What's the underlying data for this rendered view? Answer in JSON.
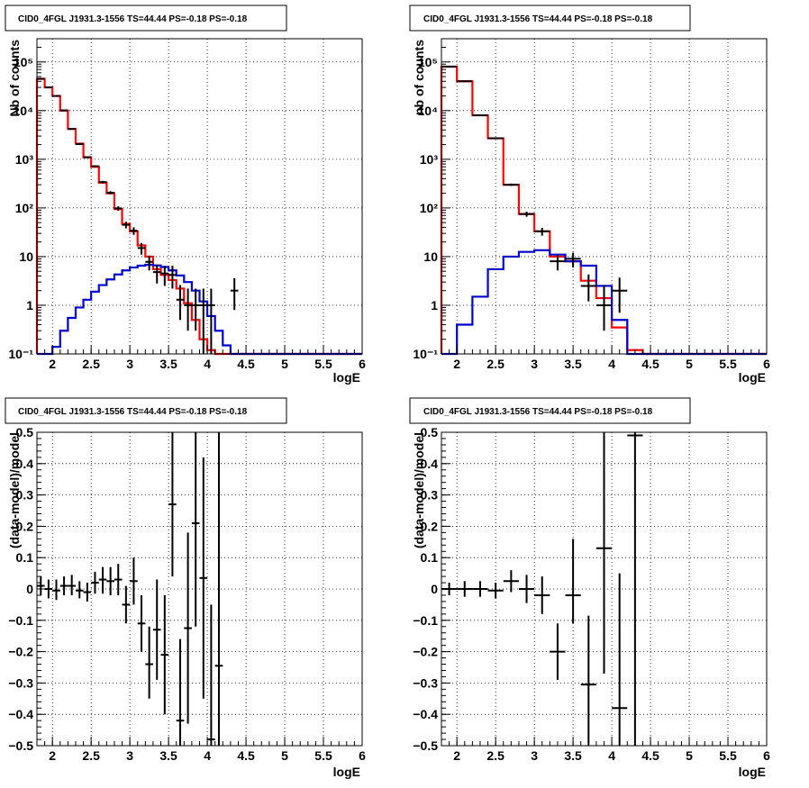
{
  "panels_title": "CID0_4FGL J1931.3-1556 TS=44.44 PS=-0.18 PS=-0.18",
  "colors": {
    "data": "#000000",
    "total_model": "#ff0000",
    "source_model": "#0000cc"
  },
  "chart_data": [
    {
      "id": "p1",
      "type": "line",
      "title": "CID0_4FGL J1931.3-1556 TS=44.44 PS=-0.18 PS=-0.18",
      "xlabel": "logE",
      "ylabel": "Nb of counts",
      "yscale": "log",
      "xlim": [
        1.8,
        6.0
      ],
      "ylim": [
        0.1,
        300000
      ],
      "xticks": [
        2,
        2.5,
        3,
        3.5,
        4,
        4.5,
        5,
        5.5,
        6
      ],
      "xtick_labels": [
        "2",
        "2.5",
        "3",
        "3.5",
        "4",
        "4.5",
        "5",
        "5.5",
        "6"
      ],
      "yticks": [
        0.1,
        1,
        10,
        100,
        1000,
        10000,
        100000
      ],
      "ytick_labels": [
        "10⁻¹",
        "1",
        "10",
        "10²",
        "10³",
        "10⁴",
        "10⁵"
      ],
      "grid": true,
      "bin_edges": [
        1.8,
        1.9,
        2.0,
        2.1,
        2.2,
        2.3,
        2.4,
        2.5,
        2.6,
        2.7,
        2.8,
        2.9,
        3.0,
        3.1,
        3.2,
        3.3,
        3.4,
        3.5,
        3.6,
        3.7,
        3.8,
        3.9,
        4.0,
        4.1,
        4.2,
        4.3,
        4.4,
        4.5,
        4.6,
        4.7,
        4.8,
        4.9,
        5.0,
        5.1,
        5.2,
        5.3,
        5.4,
        5.5,
        5.6,
        5.7,
        5.8,
        5.9,
        6.0
      ],
      "total_model": [
        45000,
        30000,
        20000,
        10000,
        4200,
        2100,
        1100,
        700,
        330,
        200,
        95,
        47,
        33,
        17,
        10,
        5.5,
        4.2,
        3.3,
        2.2,
        1.1,
        0.5,
        0.2,
        0.12,
        0.1,
        0.1,
        0.1,
        0.1,
        0.1,
        0.1,
        0.1,
        0.1,
        0.1,
        0.1,
        0.1,
        0.1,
        0.1,
        0.1,
        0.1,
        0.1,
        0.1,
        0.1,
        0.1
      ],
      "source_model": [
        0.1,
        0.1,
        0.14,
        0.3,
        0.55,
        0.9,
        1.3,
        1.9,
        2.6,
        3.4,
        4.3,
        5.2,
        6.0,
        6.5,
        6.8,
        6.6,
        6.1,
        5.2,
        4.1,
        3.0,
        2.0,
        1.2,
        0.6,
        0.3,
        0.15,
        0.1,
        0.1,
        0.1,
        0.1,
        0.1,
        0.1,
        0.1,
        0.1,
        0.1,
        0.1,
        0.1,
        0.1,
        0.1,
        0.1,
        0.1,
        0.1,
        0.1
      ],
      "data_points": [
        {
          "x": 1.85,
          "y": 45000,
          "lo": 44600,
          "hi": 45400
        },
        {
          "x": 1.95,
          "y": 30000,
          "lo": 29700,
          "hi": 30300
        },
        {
          "x": 2.05,
          "y": 20000,
          "lo": 19800,
          "hi": 20200
        },
        {
          "x": 2.15,
          "y": 10100,
          "lo": 9950,
          "hi": 10250
        },
        {
          "x": 2.25,
          "y": 4200,
          "lo": 4130,
          "hi": 4270
        },
        {
          "x": 2.35,
          "y": 2050,
          "lo": 2000,
          "hi": 2100
        },
        {
          "x": 2.45,
          "y": 1100,
          "lo": 1070,
          "hi": 1130
        },
        {
          "x": 2.55,
          "y": 720,
          "lo": 690,
          "hi": 750
        },
        {
          "x": 2.65,
          "y": 340,
          "lo": 320,
          "hi": 360
        },
        {
          "x": 2.75,
          "y": 205,
          "lo": 190,
          "hi": 220
        },
        {
          "x": 2.85,
          "y": 98,
          "lo": 88,
          "hi": 108
        },
        {
          "x": 2.95,
          "y": 45,
          "lo": 38,
          "hi": 52
        },
        {
          "x": 3.05,
          "y": 34,
          "lo": 28,
          "hi": 40
        },
        {
          "x": 3.15,
          "y": 15,
          "lo": 11,
          "hi": 19
        },
        {
          "x": 3.25,
          "y": 7.8,
          "lo": 5.2,
          "hi": 10.5
        },
        {
          "x": 3.35,
          "y": 4.8,
          "lo": 2.8,
          "hi": 6.9
        },
        {
          "x": 3.45,
          "y": 4.5,
          "lo": 2.5,
          "hi": 6.5
        },
        {
          "x": 3.55,
          "y": 4.2,
          "lo": 2.2,
          "hi": 6.5
        },
        {
          "x": 3.65,
          "y": 1.3,
          "lo": 0.5,
          "hi": 2.6
        },
        {
          "x": 3.75,
          "y": 1.0,
          "lo": 0.3,
          "hi": 2.2
        },
        {
          "x": 3.85,
          "y": 1.0,
          "lo": 0.3,
          "hi": 2.2
        },
        {
          "x": 3.95,
          "y": 1.0,
          "lo": 0.1,
          "hi": 2.2
        },
        {
          "x": 4.05,
          "y": 1.0,
          "lo": 0.1,
          "hi": 2.2
        },
        {
          "x": 4.35,
          "y": 2.0,
          "lo": 0.8,
          "hi": 3.6
        }
      ]
    },
    {
      "id": "p2",
      "type": "line",
      "title": "CID0_4FGL J1931.3-1556 TS=44.44 PS=-0.18 PS=-0.18",
      "xlabel": "logE",
      "ylabel": "nb of counts",
      "yscale": "log",
      "xlim": [
        1.8,
        6.0
      ],
      "ylim": [
        0.1,
        300000
      ],
      "xticks": [
        2,
        2.5,
        3,
        3.5,
        4,
        4.5,
        5,
        5.5,
        6
      ],
      "xtick_labels": [
        "2",
        "2.5",
        "3",
        "3.5",
        "4",
        "4.5",
        "5",
        "5.5",
        "6"
      ],
      "yticks": [
        0.1,
        1,
        10,
        100,
        1000,
        10000,
        100000
      ],
      "ytick_labels": [
        "10⁻¹",
        "1",
        "10",
        "10²",
        "10³",
        "10⁴",
        "10⁵"
      ],
      "grid": true,
      "bin_edges": [
        1.8,
        2.0,
        2.2,
        2.4,
        2.6,
        2.8,
        3.0,
        3.2,
        3.4,
        3.6,
        3.8,
        4.0,
        4.2,
        4.4,
        4.6,
        4.8,
        5.0,
        5.2,
        5.4,
        5.6,
        5.8,
        6.0
      ],
      "total_model": [
        80000,
        40000,
        8000,
        2700,
        300,
        75,
        33,
        10,
        8,
        3.2,
        1.4,
        0.35,
        0.12,
        0.1,
        0.1,
        0.1,
        0.1,
        0.1,
        0.1,
        0.1,
        0.1
      ],
      "source_model": [
        0.1,
        0.4,
        1.5,
        5.5,
        10,
        12.5,
        13.5,
        11,
        8,
        6.5,
        2.5,
        0.5,
        0.1,
        0.1,
        0.1,
        0.1,
        0.1,
        0.1,
        0.1,
        0.1,
        0.1
      ],
      "data_points": [
        {
          "x": 1.9,
          "y": 80000,
          "lo": 79700,
          "hi": 80300
        },
        {
          "x": 2.1,
          "y": 40000,
          "lo": 39800,
          "hi": 40200
        },
        {
          "x": 2.3,
          "y": 8000,
          "lo": 7900,
          "hi": 8100
        },
        {
          "x": 2.5,
          "y": 2700,
          "lo": 2650,
          "hi": 2750
        },
        {
          "x": 2.7,
          "y": 300,
          "lo": 283,
          "hi": 317
        },
        {
          "x": 2.9,
          "y": 75,
          "lo": 66,
          "hi": 84
        },
        {
          "x": 3.1,
          "y": 33,
          "lo": 27,
          "hi": 39
        },
        {
          "x": 3.3,
          "y": 8,
          "lo": 5.2,
          "hi": 10.9
        },
        {
          "x": 3.5,
          "y": 9.0,
          "lo": 6,
          "hi": 12
        },
        {
          "x": 3.7,
          "y": 2.5,
          "lo": 1.2,
          "hi": 4.3
        },
        {
          "x": 3.9,
          "y": 1.0,
          "lo": 0.3,
          "hi": 2.6
        },
        {
          "x": 4.1,
          "y": 2.0,
          "lo": 0.7,
          "hi": 3.7
        }
      ]
    },
    {
      "id": "p3",
      "type": "scatter",
      "title": "CID0_4FGL J1931.3-1556 TS=44.44 PS=-0.18 PS=-0.18",
      "xlabel": "logE",
      "ylabel": "(data-model)/model",
      "xlim": [
        1.8,
        6.0
      ],
      "ylim": [
        -0.5,
        0.5
      ],
      "xticks": [
        2,
        2.5,
        3,
        3.5,
        4,
        4.5,
        5,
        5.5,
        6
      ],
      "xtick_labels": [
        "2",
        "2.5",
        "3",
        "3.5",
        "4",
        "4.5",
        "5",
        "5.5",
        "6"
      ],
      "yticks": [
        -0.5,
        -0.4,
        -0.3,
        -0.2,
        -0.1,
        0,
        0.1,
        0.2,
        0.3,
        0.4,
        0.5
      ],
      "ytick_labels": [
        "−0.5",
        "−0.4",
        "−0.3",
        "−0.2",
        "−0.1",
        "0",
        "0.1",
        "0.2",
        "0.3",
        "0.4",
        "0.5"
      ],
      "grid": true,
      "x_halfwidth": 0.05,
      "points": [
        {
          "x": 1.85,
          "y": 0.01,
          "lo": -0.02,
          "hi": 0.04
        },
        {
          "x": 1.95,
          "y": 0.0,
          "lo": -0.03,
          "hi": 0.03
        },
        {
          "x": 2.05,
          "y": -0.005,
          "lo": -0.035,
          "hi": 0.03
        },
        {
          "x": 2.15,
          "y": 0.01,
          "lo": -0.02,
          "hi": 0.04
        },
        {
          "x": 2.25,
          "y": 0.01,
          "lo": -0.02,
          "hi": 0.045
        },
        {
          "x": 2.35,
          "y": -0.005,
          "lo": -0.03,
          "hi": 0.025
        },
        {
          "x": 2.45,
          "y": -0.01,
          "lo": -0.04,
          "hi": 0.02
        },
        {
          "x": 2.55,
          "y": 0.02,
          "lo": -0.015,
          "hi": 0.055
        },
        {
          "x": 2.65,
          "y": 0.03,
          "lo": -0.015,
          "hi": 0.07
        },
        {
          "x": 2.75,
          "y": 0.025,
          "lo": -0.02,
          "hi": 0.07
        },
        {
          "x": 2.85,
          "y": 0.03,
          "lo": -0.02,
          "hi": 0.08
        },
        {
          "x": 2.95,
          "y": -0.05,
          "lo": -0.11,
          "hi": 0.01
        },
        {
          "x": 3.05,
          "y": 0.025,
          "lo": -0.05,
          "hi": 0.1
        },
        {
          "x": 3.15,
          "y": -0.11,
          "lo": -0.2,
          "hi": -0.02
        },
        {
          "x": 3.25,
          "y": -0.24,
          "lo": -0.35,
          "hi": -0.12
        },
        {
          "x": 3.35,
          "y": -0.13,
          "lo": -0.29,
          "hi": 0.03
        },
        {
          "x": 3.45,
          "y": -0.21,
          "lo": -0.4,
          "hi": -0.02
        },
        {
          "x": 3.55,
          "y": 0.27,
          "lo": 0.04,
          "hi": 0.5
        },
        {
          "x": 3.65,
          "y": -0.42,
          "lo": -0.5,
          "hi": -0.16
        },
        {
          "x": 3.75,
          "y": -0.125,
          "lo": -0.43,
          "hi": 0.18
        },
        {
          "x": 3.85,
          "y": 0.21,
          "lo": -0.12,
          "hi": 0.5
        },
        {
          "x": 3.95,
          "y": 0.035,
          "lo": -0.35,
          "hi": 0.42
        },
        {
          "x": 4.05,
          "y": -0.48,
          "lo": -0.5,
          "hi": -0.05
        },
        {
          "x": 4.15,
          "y": -0.245,
          "lo": -0.5,
          "hi": 0.5
        }
      ]
    },
    {
      "id": "p4",
      "type": "scatter",
      "title": "CID0_4FGL J1931.3-1556 TS=44.44 PS=-0.18 PS=-0.18",
      "xlabel": "logE",
      "ylabel": "(data-model)/model",
      "xlim": [
        1.8,
        6.0
      ],
      "ylim": [
        -0.5,
        0.5
      ],
      "xticks": [
        2,
        2.5,
        3,
        3.5,
        4,
        4.5,
        5,
        5.5,
        6
      ],
      "xtick_labels": [
        "2",
        "2.5",
        "3",
        "3.5",
        "4",
        "4.5",
        "5",
        "5.5",
        "6"
      ],
      "yticks": [
        -0.5,
        -0.4,
        -0.3,
        -0.2,
        -0.1,
        0,
        0.1,
        0.2,
        0.3,
        0.4,
        0.5
      ],
      "ytick_labels": [
        "−0.5",
        "−0.4",
        "−0.3",
        "−0.2",
        "−0.1",
        "0",
        "0.1",
        "0.2",
        "0.3",
        "0.4",
        "0.5"
      ],
      "grid": true,
      "x_halfwidth": 0.1,
      "points": [
        {
          "x": 1.9,
          "y": 0.0,
          "lo": -0.02,
          "hi": 0.02
        },
        {
          "x": 2.1,
          "y": 0.0,
          "lo": -0.025,
          "hi": 0.025
        },
        {
          "x": 2.3,
          "y": 0.0,
          "lo": -0.025,
          "hi": 0.025
        },
        {
          "x": 2.5,
          "y": -0.005,
          "lo": -0.03,
          "hi": 0.02
        },
        {
          "x": 2.7,
          "y": 0.025,
          "lo": -0.01,
          "hi": 0.06
        },
        {
          "x": 2.9,
          "y": 0.0,
          "lo": -0.045,
          "hi": 0.045
        },
        {
          "x": 3.1,
          "y": -0.02,
          "lo": -0.08,
          "hi": 0.04
        },
        {
          "x": 3.3,
          "y": -0.2,
          "lo": -0.29,
          "hi": -0.11
        },
        {
          "x": 3.5,
          "y": -0.02,
          "lo": -0.11,
          "hi": 0.16
        },
        {
          "x": 3.7,
          "y": -0.305,
          "lo": -0.5,
          "hi": -0.085
        },
        {
          "x": 3.9,
          "y": 0.13,
          "lo": -0.27,
          "hi": 0.5
        },
        {
          "x": 4.1,
          "y": -0.38,
          "lo": -0.5,
          "hi": 0.05
        },
        {
          "x": 4.3,
          "y": 0.49,
          "lo": -0.5,
          "hi": 0.5
        }
      ]
    }
  ]
}
